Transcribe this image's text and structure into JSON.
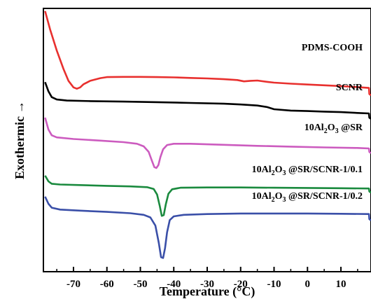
{
  "chart_data": {
    "type": "line",
    "xlabel": "Temperature (°C)",
    "ylabel": "Exothermic",
    "ylabel_arrow": "→",
    "xlim": [
      -79,
      19
    ],
    "xticks": [
      -70,
      -60,
      -50,
      -40,
      -30,
      -20,
      -10,
      0,
      10
    ],
    "ylim": [
      0,
      100
    ],
    "y_ticks_shown": false,
    "grid": false,
    "series": [
      {
        "name": "PDMS-COOH",
        "label_parts": [
          {
            "t": "PDMS-COOH"
          }
        ],
        "color": "#e8302e",
        "points": [
          [
            -78.5,
            99
          ],
          [
            -77,
            92
          ],
          [
            -75,
            84
          ],
          [
            -73,
            77
          ],
          [
            -71.5,
            72.5
          ],
          [
            -70,
            70
          ],
          [
            -69,
            69.5
          ],
          [
            -68,
            70
          ],
          [
            -67,
            71.2
          ],
          [
            -65,
            72.5
          ],
          [
            -62,
            73.5
          ],
          [
            -60,
            73.9
          ],
          [
            -55,
            74
          ],
          [
            -50,
            74
          ],
          [
            -45,
            73.9
          ],
          [
            -40,
            73.8
          ],
          [
            -35,
            73.6
          ],
          [
            -30,
            73.4
          ],
          [
            -25,
            73.1
          ],
          [
            -21,
            72.8
          ],
          [
            -19,
            72.3
          ],
          [
            -17,
            72.5
          ],
          [
            -15,
            72.6
          ],
          [
            -12,
            72.1
          ],
          [
            -10,
            71.8
          ],
          [
            -5,
            71.4
          ],
          [
            0,
            71.1
          ],
          [
            5,
            70.8
          ],
          [
            10,
            70.5
          ],
          [
            15,
            70.1
          ],
          [
            18.4,
            69.8
          ],
          [
            18.5,
            67.5
          ],
          [
            19,
            67
          ]
        ]
      },
      {
        "name": "SCNR",
        "label_parts": [
          {
            "t": "SCNR"
          }
        ],
        "color": "#000000",
        "points": [
          [
            -78.5,
            72
          ],
          [
            -77.5,
            68.5
          ],
          [
            -76.5,
            66.3
          ],
          [
            -75,
            65.4
          ],
          [
            -72,
            65
          ],
          [
            -65,
            64.8
          ],
          [
            -55,
            64.6
          ],
          [
            -45,
            64.4
          ],
          [
            -35,
            64.1
          ],
          [
            -25,
            63.8
          ],
          [
            -20,
            63.5
          ],
          [
            -15,
            63.1
          ],
          [
            -12,
            62.5
          ],
          [
            -10,
            61.7
          ],
          [
            -5,
            61.2
          ],
          [
            0,
            61
          ],
          [
            5,
            60.8
          ],
          [
            10,
            60.6
          ],
          [
            15,
            60.3
          ],
          [
            18.4,
            60.1
          ],
          [
            18.5,
            58.5
          ],
          [
            19,
            58
          ]
        ]
      },
      {
        "name": "10Al2O3 @SR",
        "label_parts": [
          {
            "t": "10Al"
          },
          {
            "t": "2",
            "sub": true
          },
          {
            "t": "O"
          },
          {
            "t": "3",
            "sub": true
          },
          {
            "t": " @SR"
          }
        ],
        "color": "#cc5bbf",
        "points": [
          [
            -78.5,
            58.5
          ],
          [
            -77.5,
            54
          ],
          [
            -76.5,
            51.8
          ],
          [
            -75,
            51
          ],
          [
            -70,
            50.4
          ],
          [
            -62,
            49.8
          ],
          [
            -55,
            49.2
          ],
          [
            -51,
            48.6
          ],
          [
            -49,
            47.6
          ],
          [
            -47.5,
            45.5
          ],
          [
            -46.5,
            42
          ],
          [
            -45.8,
            39.7
          ],
          [
            -45.2,
            39.4
          ],
          [
            -44.6,
            40.5
          ],
          [
            -44,
            43.5
          ],
          [
            -43.2,
            46.5
          ],
          [
            -42,
            48.1
          ],
          [
            -40,
            48.6
          ],
          [
            -35,
            48.6
          ],
          [
            -25,
            48.2
          ],
          [
            -15,
            47.8
          ],
          [
            -5,
            47.5
          ],
          [
            5,
            47.2
          ],
          [
            15,
            47
          ],
          [
            18.4,
            46.8
          ],
          [
            18.5,
            45.5
          ],
          [
            19,
            45
          ]
        ]
      },
      {
        "name": "10Al2O3 @SR/SCNR-1/0.1",
        "label_parts": [
          {
            "t": "10Al"
          },
          {
            "t": "2",
            "sub": true
          },
          {
            "t": "O"
          },
          {
            "t": "3",
            "sub": true
          },
          {
            "t": " @SR/SCNR-1/0.1"
          }
        ],
        "color": "#1a8a3e",
        "points": [
          [
            -78.5,
            36.5
          ],
          [
            -77.5,
            34.3
          ],
          [
            -76.5,
            33.4
          ],
          [
            -74,
            33.1
          ],
          [
            -68,
            32.9
          ],
          [
            -60,
            32.6
          ],
          [
            -53,
            32.4
          ],
          [
            -48,
            32.1
          ],
          [
            -46,
            31.4
          ],
          [
            -45,
            29.3
          ],
          [
            -44.2,
            25
          ],
          [
            -43.6,
            21.2
          ],
          [
            -43,
            21.5
          ],
          [
            -42.4,
            25.5
          ],
          [
            -41.6,
            29.6
          ],
          [
            -40.5,
            31.3
          ],
          [
            -38,
            31.9
          ],
          [
            -30,
            32
          ],
          [
            -20,
            32
          ],
          [
            -10,
            31.9
          ],
          [
            0,
            31.8
          ],
          [
            10,
            31.7
          ],
          [
            18.4,
            31.6
          ],
          [
            18.5,
            30.5
          ],
          [
            19,
            30
          ]
        ]
      },
      {
        "name": "10Al2O3 @SR/SCNR-1/0.2",
        "label_parts": [
          {
            "t": "10Al"
          },
          {
            "t": "2",
            "sub": true
          },
          {
            "t": "O"
          },
          {
            "t": "3",
            "sub": true
          },
          {
            "t": " @SR/SCNR-1/0.2"
          }
        ],
        "color": "#3a4fa8",
        "points": [
          [
            -78.5,
            28.5
          ],
          [
            -77.5,
            25.8
          ],
          [
            -76.5,
            24.3
          ],
          [
            -74,
            23.6
          ],
          [
            -68,
            23.2
          ],
          [
            -60,
            22.7
          ],
          [
            -53,
            22.2
          ],
          [
            -49,
            21.6
          ],
          [
            -47,
            20.6
          ],
          [
            -45.5,
            17.5
          ],
          [
            -44.5,
            11
          ],
          [
            -43.8,
            5.5
          ],
          [
            -43.2,
            5.2
          ],
          [
            -42.6,
            9
          ],
          [
            -42,
            15
          ],
          [
            -41.2,
            19.6
          ],
          [
            -40,
            21
          ],
          [
            -37,
            21.6
          ],
          [
            -30,
            21.9
          ],
          [
            -20,
            22.1
          ],
          [
            -10,
            22.1
          ],
          [
            0,
            22.1
          ],
          [
            10,
            22
          ],
          [
            18.4,
            21.9
          ],
          [
            18.5,
            20
          ],
          [
            19,
            19.5
          ]
        ]
      }
    ]
  }
}
